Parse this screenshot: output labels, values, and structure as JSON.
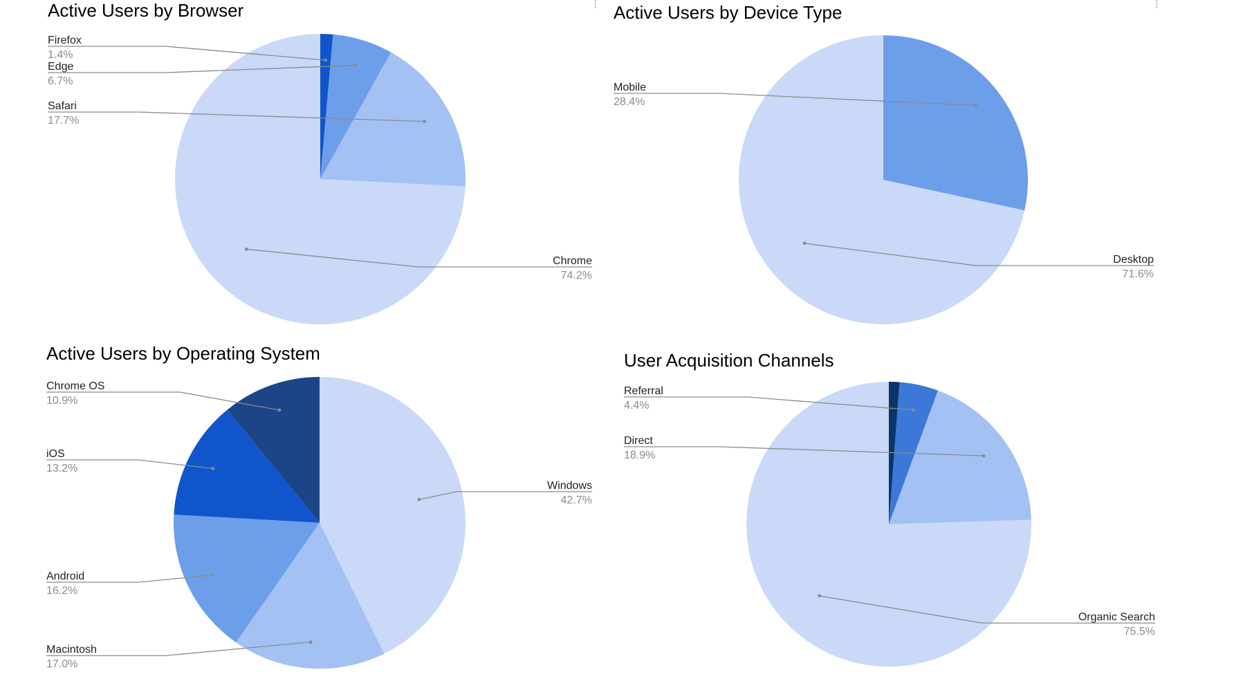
{
  "chart_data": [
    {
      "type": "pie",
      "title": "Active Users by Browser",
      "slices": [
        {
          "label": "Chrome",
          "value": 74.2,
          "display": "74.2%",
          "color": "#c9d9f7"
        },
        {
          "label": "Safari",
          "value": 17.7,
          "display": "17.7%",
          "color": "#a3c1f3"
        },
        {
          "label": "Edge",
          "value": 6.7,
          "display": "6.7%",
          "color": "#6d9eea"
        },
        {
          "label": "Firefox",
          "value": 1.4,
          "display": "1.4%",
          "color": "#1155cc"
        }
      ],
      "legend": "labels with leader lines"
    },
    {
      "type": "pie",
      "title": "Active Users by Device Type",
      "slices": [
        {
          "label": "Desktop",
          "value": 71.6,
          "display": "71.6%",
          "color": "#c9d9f7"
        },
        {
          "label": "Mobile",
          "value": 28.4,
          "display": "28.4%",
          "color": "#6d9eea"
        }
      ],
      "legend": "labels with leader lines"
    },
    {
      "type": "pie",
      "title": "Active Users by Operating System",
      "slices": [
        {
          "label": "Windows",
          "value": 42.7,
          "display": "42.7%",
          "color": "#c9d9f7"
        },
        {
          "label": "Macintosh",
          "value": 17.0,
          "display": "17.0%",
          "color": "#a3c1f3"
        },
        {
          "label": "Android",
          "value": 16.2,
          "display": "16.2%",
          "color": "#6d9eea"
        },
        {
          "label": "iOS",
          "value": 13.2,
          "display": "13.2%",
          "color": "#1155cc"
        },
        {
          "label": "Chrome OS",
          "value": 10.9,
          "display": "10.9%",
          "color": "#1c4587"
        }
      ],
      "legend": "labels with leader lines"
    },
    {
      "type": "pie",
      "title": "User Acquisition Channels",
      "slices": [
        {
          "label": "Organic Search",
          "value": 75.5,
          "display": "75.5%",
          "color": "#c9d9f7"
        },
        {
          "label": "Direct",
          "value": 18.9,
          "display": "18.9%",
          "color": "#a3c1f3"
        },
        {
          "label": "Referral",
          "value": 4.4,
          "display": "4.4%",
          "color": "#3c78d8"
        },
        {
          "label": "",
          "value": 1.2,
          "display": "",
          "color": "#0b3568"
        }
      ],
      "legend": "labels with leader lines"
    }
  ]
}
